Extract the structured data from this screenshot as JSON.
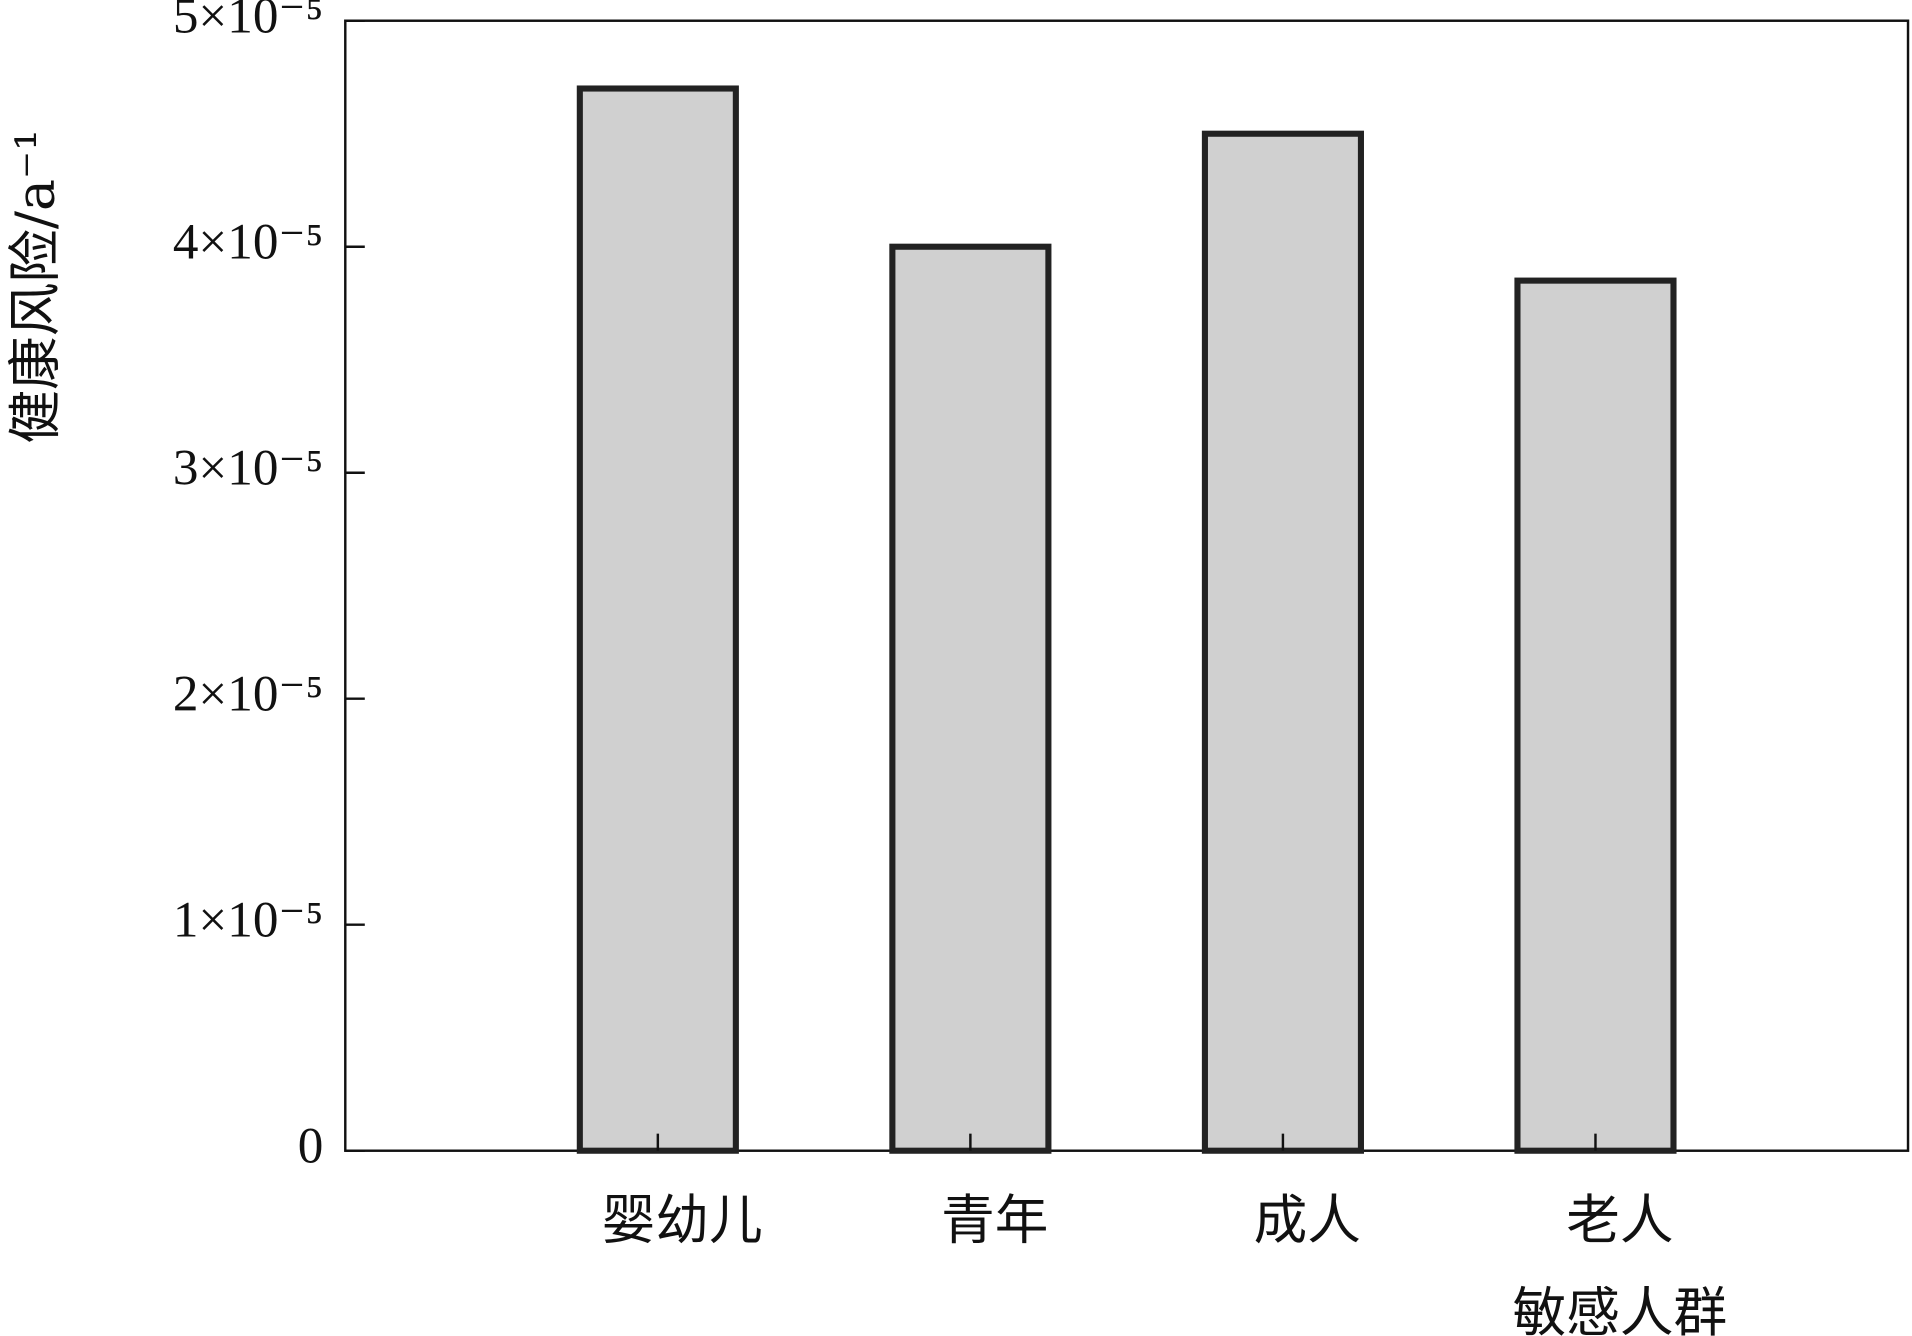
{
  "chart_data": {
    "type": "bar",
    "y_label": "健康风险/a⁻¹",
    "categories": [
      "婴幼儿",
      "青年",
      "成人",
      "老人\n敏感人群"
    ],
    "values": [
      4.7e-05,
      4e-05,
      4.5e-05,
      3.85e-05
    ],
    "color": "#d0d0d0",
    "ylim": [
      0,
      5e-05
    ],
    "yticks": [
      0,
      {
        "value": 1e-05,
        "label": "1×10⁻⁵"
      },
      {
        "value": 2e-05,
        "label": "2×10⁻⁵"
      },
      {
        "value": 3e-05,
        "label": "3×10⁻⁵"
      },
      {
        "value": 4e-05,
        "label": "4×10⁻⁵"
      },
      {
        "value": 5e-05,
        "label": "5×10⁻⁵"
      }
    ],
    "grid": false
  }
}
